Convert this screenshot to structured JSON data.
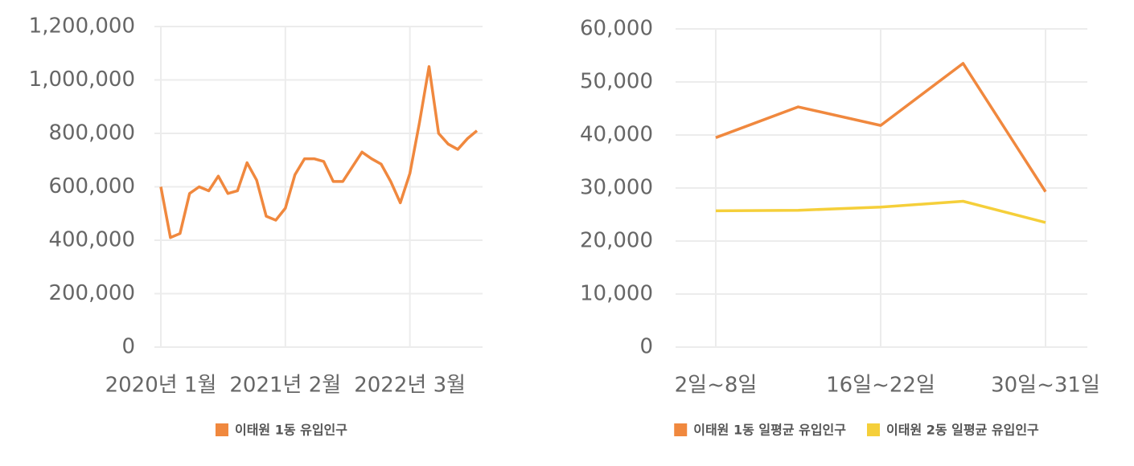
{
  "chart_data": [
    {
      "type": "line",
      "categories": [
        "2020년 1월",
        null,
        null,
        null,
        null,
        null,
        null,
        null,
        null,
        null,
        null,
        null,
        null,
        "2021년 2월",
        null,
        null,
        null,
        null,
        null,
        null,
        null,
        null,
        null,
        null,
        null,
        null,
        "2022년 3월",
        null,
        null,
        null,
        null,
        null,
        null,
        null
      ],
      "series": [
        {
          "name": "이태원 1동 유입인구",
          "color": "#f0883e",
          "values": [
            600000,
            410000,
            425000,
            575000,
            600000,
            585000,
            640000,
            575000,
            585000,
            690000,
            625000,
            490000,
            475000,
            520000,
            645000,
            705000,
            705000,
            695000,
            620000,
            620000,
            675000,
            730000,
            705000,
            685000,
            620000,
            540000,
            650000,
            840000,
            1050000,
            800000,
            760000,
            740000,
            780000,
            810000
          ]
        }
      ],
      "ylim": [
        0,
        1200000
      ],
      "yticks": [
        0,
        {
          "value": 200000,
          "label": "200,000"
        },
        {
          "value": 400000,
          "label": "400,000"
        },
        {
          "value": 600000,
          "label": "600,000"
        },
        {
          "value": 800000,
          "label": "800,000"
        },
        {
          "value": 1000000,
          "label": "1,000,000"
        },
        {
          "value": 1200000,
          "label": "1,200,000"
        }
      ],
      "grid": true,
      "legend": "bottom"
    },
    {
      "type": "line",
      "categories": [
        "2일~8일",
        null,
        "16일~22일",
        null,
        "30일~31일"
      ],
      "series": [
        {
          "name": "이태원 1동 일평균 유입인구",
          "color": "#f0883e",
          "values": [
            39500,
            45300,
            41800,
            53500,
            29300
          ]
        },
        {
          "name": "이태원 2동 일평균 유입인구",
          "color": "#f5cf3a",
          "values": [
            25700,
            25800,
            26400,
            27500,
            23500
          ]
        }
      ],
      "ylim": [
        0,
        60000
      ],
      "yticks": [
        0,
        {
          "value": 10000,
          "label": "10,000"
        },
        {
          "value": 20000,
          "label": "20,000"
        },
        {
          "value": 30000,
          "label": "30,000"
        },
        {
          "value": 40000,
          "label": "40,000"
        },
        {
          "value": 50000,
          "label": "50,000"
        },
        {
          "value": 60000,
          "label": "60,000"
        }
      ],
      "grid": true,
      "legend": "bottom"
    }
  ]
}
